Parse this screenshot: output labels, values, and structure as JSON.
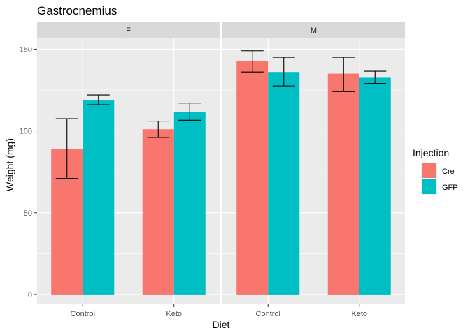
{
  "chart_data": {
    "type": "bar",
    "title": "Gastrocnemius",
    "xlabel": "Diet",
    "ylabel": "Weight (mg)",
    "ylim": [
      -6,
      157
    ],
    "yticks": [
      0,
      50,
      100,
      150
    ],
    "categories": [
      "Control",
      "Keto"
    ],
    "facets": [
      {
        "label": "F",
        "series": [
          {
            "name": "Cre",
            "values": [
              89,
              101
            ],
            "err_low": [
              71,
              96
            ],
            "err_high": [
              107.5,
              106
            ]
          },
          {
            "name": "GFP",
            "values": [
              119,
              111.5
            ],
            "err_low": [
              116,
              106.5
            ],
            "err_high": [
              122,
              117
            ]
          }
        ]
      },
      {
        "label": "M",
        "series": [
          {
            "name": "Cre",
            "values": [
              142.5,
              135
            ],
            "err_low": [
              136,
              124
            ],
            "err_high": [
              149,
              145
            ]
          },
          {
            "name": "GFP",
            "values": [
              136,
              132.5
            ],
            "err_low": [
              127.5,
              129
            ],
            "err_high": [
              145,
              136.5
            ]
          }
        ]
      }
    ],
    "legend": {
      "title": "Injection",
      "position": "right",
      "entries": [
        {
          "name": "Cre",
          "color": "#F8766D"
        },
        {
          "name": "GFP",
          "color": "#00BFC4"
        }
      ]
    },
    "colors": {
      "panel_bg": "#EBEBEB",
      "strip_bg": "#D9D9D9",
      "grid": "#FFFFFF",
      "error_bar": "#000000"
    }
  }
}
